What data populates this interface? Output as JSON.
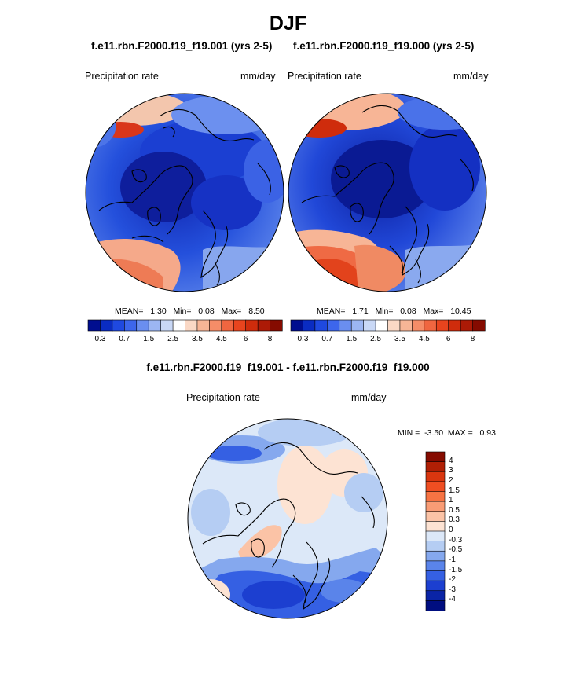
{
  "page_title": "DJF",
  "panels": [
    {
      "run": "f.e11.rbn.F2000.f19_f19.001 (yrs 2-5)",
      "variable": "Precipitation rate",
      "units": "mm/day",
      "stats": {
        "mean_label": "MEAN=",
        "mean": "1.30",
        "min_label": "Min=",
        "min": "0.08",
        "max_label": "Max=",
        "max": "8.50"
      }
    },
    {
      "run": "f.e11.rbn.F2000.f19_f19.000 (yrs 2-5)",
      "variable": "Precipitation rate",
      "units": "mm/day",
      "stats": {
        "mean_label": "MEAN=",
        "mean": "1.71",
        "min_label": "Min=",
        "min": "0.08",
        "max_label": "Max=",
        "max": "10.45"
      }
    }
  ],
  "diff_panel": {
    "title": "f.e11.rbn.F2000.f19_f19.001 - f.e11.rbn.F2000.f19_f19.000",
    "variable": "Precipitation rate",
    "units": "mm/day",
    "min_label": "MIN =",
    "min": "-3.50",
    "max_label": "MAX =",
    "max": "0.93"
  },
  "colorbar_abs": {
    "ticks": [
      "0.3",
      "0.7",
      "1.5",
      "2.5",
      "3.5",
      "4.5",
      "6",
      "8"
    ],
    "colors": [
      "#000e8f",
      "#0a2cc2",
      "#1f49e0",
      "#3d66ec",
      "#6a8ef0",
      "#9cb6f3",
      "#c9d8f6",
      "#ffffff",
      "#fad8c5",
      "#f7b596",
      "#f58d68",
      "#f06640",
      "#e8441e",
      "#cf2c0c",
      "#ac1a06",
      "#850b00"
    ]
  },
  "colorbar_diff": {
    "labels": [
      "4",
      "3",
      "2",
      "1.5",
      "1",
      "0.5",
      "0.3",
      "0",
      "-0.3",
      "-0.5",
      "-1",
      "-1.5",
      "-2",
      "-3",
      "-4"
    ],
    "colors": [
      "#850b00",
      "#b01f05",
      "#d9360f",
      "#ef4e22",
      "#f77343",
      "#f99c75",
      "#fbc3a6",
      "#fde3d3",
      "#dce8f8",
      "#b5cdf3",
      "#85a8ee",
      "#5a84ea",
      "#3560e3",
      "#1c3fd0",
      "#0a24a6",
      "#000e80"
    ]
  }
}
